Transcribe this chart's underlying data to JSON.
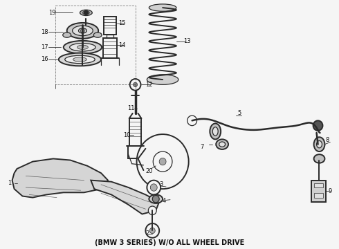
{
  "title": "(BMW 3 SERIES) W/O ALL WHEEL DRIVE",
  "title_fontsize": 7.0,
  "bg_color": "#f5f5f5",
  "line_color": "#2a2a2a",
  "label_color": "#111111",
  "label_fontsize": 6.0,
  "fig_w": 4.9,
  "fig_h": 3.6,
  "dpi": 100
}
